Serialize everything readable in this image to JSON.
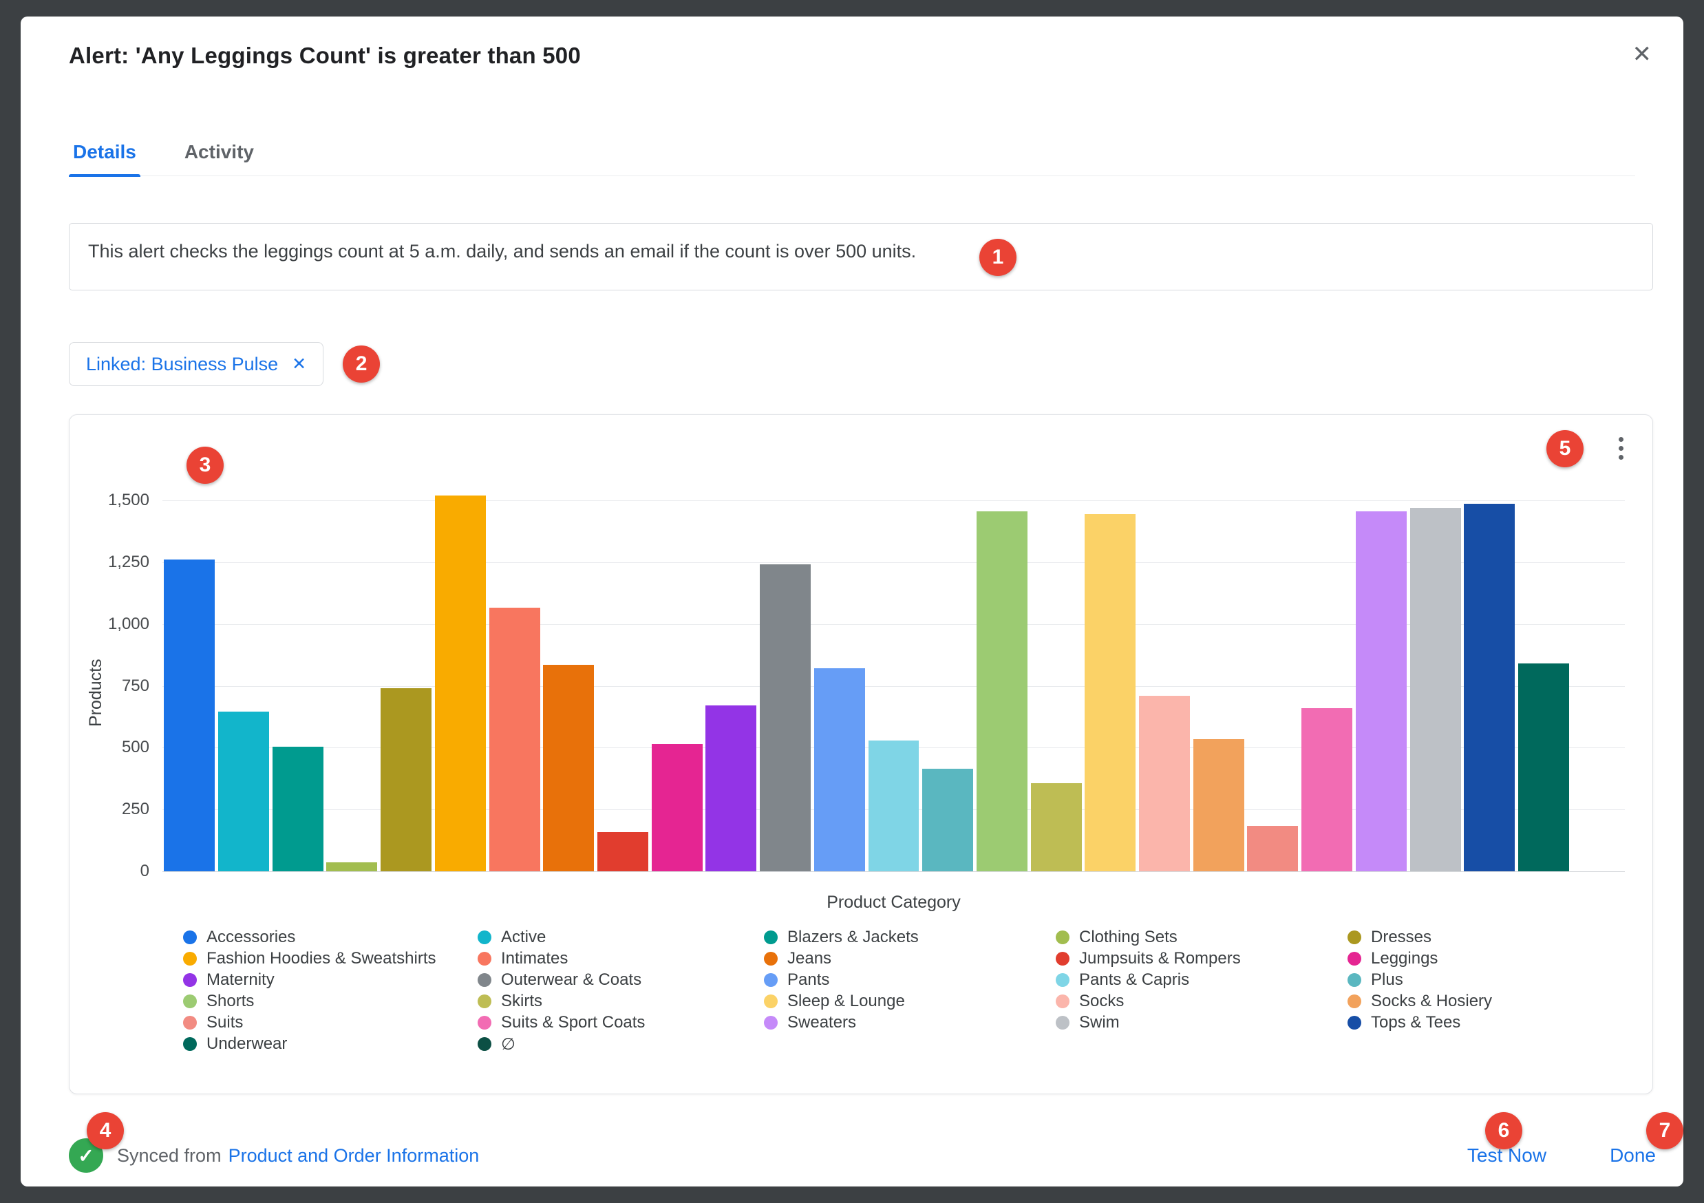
{
  "modal": {
    "title": "Alert: 'Any Leggings Count' is greater than 500"
  },
  "icons": {
    "close": "✕",
    "chip_remove": "✕",
    "synced_check": "✓"
  },
  "tabs": [
    {
      "label": "Details",
      "active": true
    },
    {
      "label": "Activity",
      "active": false
    }
  ],
  "description": {
    "value": "This alert checks the leggings count at 5 a.m. daily, and sends an email if the count is over 500 units."
  },
  "linked_chip": {
    "label": "Linked: Business Pulse"
  },
  "chart_data": {
    "type": "bar",
    "title": "",
    "xlabel": "Product Category",
    "ylabel": "Products",
    "ylim": [
      0,
      1500
    ],
    "yticks": [
      "0",
      "250",
      "500",
      "750",
      "1,000",
      "1,250",
      "1,500"
    ],
    "grid": true,
    "legend_position": "bottom",
    "categories": [
      "Accessories",
      "Active",
      "Blazers & Jackets",
      "Clothing Sets",
      "Dresses",
      "Fashion Hoodies & Sweatshirts",
      "Intimates",
      "Jeans",
      "Jumpsuits & Rompers",
      "Leggings",
      "Maternity",
      "Outerwear & Coats",
      "Pants",
      "Pants & Capris",
      "Plus",
      "Shorts",
      "Skirts",
      "Sleep & Lounge",
      "Socks",
      "Socks & Hosiery",
      "Suits",
      "Suits & Sport Coats",
      "Sweaters",
      "Swim",
      "Tops & Tees",
      "Underwear",
      "∅"
    ],
    "values": [
      1260,
      645,
      505,
      35,
      740,
      1520,
      1065,
      835,
      160,
      515,
      670,
      1240,
      820,
      530,
      415,
      1455,
      355,
      1445,
      710,
      535,
      185,
      660,
      1455,
      1470,
      1485,
      840,
      0
    ],
    "colors": [
      "#1a73e8",
      "#12b5cb",
      "#009b8f",
      "#a2bd4f",
      "#ab9820",
      "#f9ab00",
      "#f8765f",
      "#e8710a",
      "#e13d2e",
      "#e52592",
      "#9334e6",
      "#80868b",
      "#669df6",
      "#7fd5e6",
      "#5ab7c0",
      "#9ccb72",
      "#bebd54",
      "#fbd267",
      "#fbb5ab",
      "#f2a25c",
      "#f28b82",
      "#f26cb3",
      "#c58af9",
      "#bdc1c6",
      "#174ea6",
      "#00695c",
      "#0c4f44"
    ]
  },
  "footer": {
    "synced_prefix": "Synced from",
    "synced_link": "Product and Order Information",
    "test_now": "Test Now",
    "done": "Done"
  },
  "annotations": [
    {
      "label": "1"
    },
    {
      "label": "2"
    },
    {
      "label": "3"
    },
    {
      "label": "4"
    },
    {
      "label": "5"
    },
    {
      "label": "6"
    },
    {
      "label": "7"
    }
  ],
  "colors": {
    "accent": "#1a73e8",
    "annotation_badge": "#ea4335",
    "success": "#34a853"
  }
}
